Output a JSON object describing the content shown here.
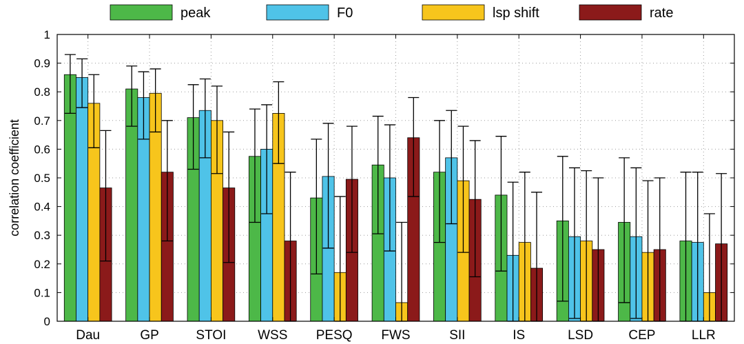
{
  "chart_data": {
    "type": "bar",
    "title": "",
    "xlabel": "",
    "ylabel": "correlation coefficient",
    "ylim": [
      0,
      1
    ],
    "yticks": [
      "0",
      "0.1",
      "0.2",
      "0.3",
      "0.4",
      "0.5",
      "0.6",
      "0.7",
      "0.8",
      "0.9",
      "1"
    ],
    "grid": true,
    "legend_position": "top",
    "categories": [
      "Dau",
      "GP",
      "STOI",
      "WSS",
      "PESQ",
      "FWS",
      "SII",
      "IS",
      "LSD",
      "CEP",
      "LLR"
    ],
    "series": [
      {
        "name": "peak",
        "color": "#4db848",
        "values": [
          0.86,
          0.81,
          0.71,
          0.575,
          0.43,
          0.545,
          0.52,
          0.44,
          0.35,
          0.345,
          0.28
        ],
        "lower": [
          0.725,
          0.68,
          0.53,
          0.345,
          0.165,
          0.305,
          0.275,
          0.175,
          0.07,
          0.065,
          0.0
        ],
        "upper": [
          0.93,
          0.89,
          0.825,
          0.74,
          0.635,
          0.715,
          0.7,
          0.645,
          0.575,
          0.57,
          0.52
        ]
      },
      {
        "name": "F0",
        "color": "#4fc3e8",
        "values": [
          0.85,
          0.78,
          0.735,
          0.6,
          0.505,
          0.5,
          0.57,
          0.23,
          0.295,
          0.295,
          0.275
        ],
        "lower": [
          0.745,
          0.635,
          0.57,
          0.375,
          0.255,
          0.245,
          0.34,
          0.0,
          0.01,
          0.01,
          0.0
        ],
        "upper": [
          0.915,
          0.87,
          0.845,
          0.755,
          0.69,
          0.685,
          0.735,
          0.485,
          0.535,
          0.535,
          0.52
        ]
      },
      {
        "name": "lsp shift",
        "color": "#f7c51c",
        "values": [
          0.76,
          0.795,
          0.7,
          0.725,
          0.17,
          0.065,
          0.49,
          0.275,
          0.28,
          0.24,
          0.1
        ],
        "lower": [
          0.605,
          0.66,
          0.515,
          0.55,
          0.0,
          0.0,
          0.24,
          0.0,
          0.0,
          0.0,
          0.0
        ],
        "upper": [
          0.86,
          0.88,
          0.82,
          0.835,
          0.435,
          0.345,
          0.68,
          0.52,
          0.525,
          0.49,
          0.375
        ]
      },
      {
        "name": "rate",
        "color": "#8b1a1a",
        "values": [
          0.465,
          0.52,
          0.465,
          0.28,
          0.495,
          0.64,
          0.425,
          0.185,
          0.25,
          0.25,
          0.27
        ],
        "lower": [
          0.21,
          0.28,
          0.205,
          0.0,
          0.24,
          0.435,
          0.155,
          0.0,
          0.0,
          0.0,
          0.0
        ],
        "upper": [
          0.665,
          0.7,
          0.66,
          0.52,
          0.68,
          0.78,
          0.63,
          0.45,
          0.5,
          0.5,
          0.515
        ]
      }
    ]
  }
}
